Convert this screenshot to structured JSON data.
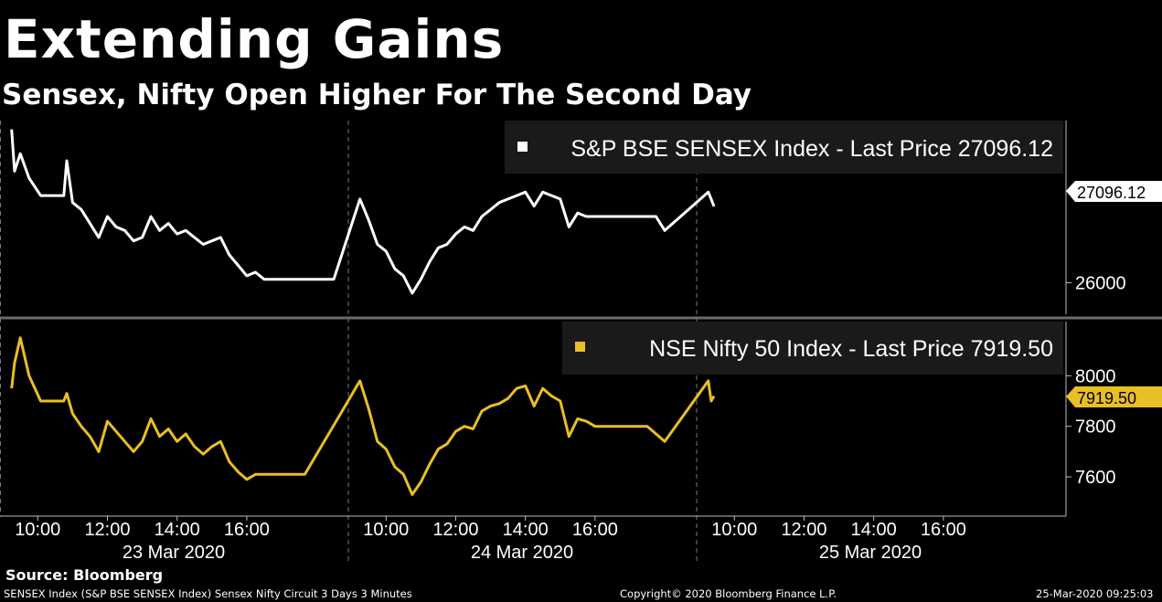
{
  "header": {
    "title": "Extending Gains",
    "subtitle": "Sensex, Nifty Open Higher For The Second Day"
  },
  "footer": {
    "source": "Source: Bloomberg",
    "description": "SENSEX Index (S&P BSE SENSEX Index) Sensex Nifty Circuit 3 Days 3 Minutes",
    "copyright": "Copyright© 2020 Bloomberg Finance L.P.",
    "timestamp": "25-Mar-2020 09:25:03"
  },
  "colors": {
    "background": "#000000",
    "sensex": "#ffffff",
    "nifty": "#e8bf24",
    "legend_bg": "#1a1a1a"
  },
  "chart_data": [
    {
      "type": "line",
      "panel": "top",
      "legend": "S&P BSE SENSEX Index - Last Price 27096.12",
      "last_price_label": "27096.12",
      "y_ticks": [
        "26000"
      ],
      "ylim": [
        25600,
        28300
      ],
      "grid": false,
      "legend_position": "top-right",
      "series": [
        {
          "name": "S&P BSE SENSEX Index",
          "color": "#ffffff",
          "points": [
            [
              "23 Mar 09:15",
              28200
            ],
            [
              "23 Mar 09:20",
              27600
            ],
            [
              "23 Mar 09:30",
              27850
            ],
            [
              "23 Mar 09:45",
              27500
            ],
            [
              "23 Mar 10:05",
              27250
            ],
            [
              "23 Mar 10:30",
              27250
            ],
            [
              "23 Mar 10:45",
              27250
            ],
            [
              "23 Mar 10:50",
              27750
            ],
            [
              "23 Mar 11:00",
              27150
            ],
            [
              "23 Mar 11:15",
              27050
            ],
            [
              "23 Mar 11:30",
              26850
            ],
            [
              "23 Mar 11:45",
              26650
            ],
            [
              "23 Mar 12:00",
              26950
            ],
            [
              "23 Mar 12:15",
              26800
            ],
            [
              "23 Mar 12:30",
              26750
            ],
            [
              "23 Mar 12:45",
              26600
            ],
            [
              "23 Mar 13:00",
              26650
            ],
            [
              "23 Mar 13:15",
              26950
            ],
            [
              "23 Mar 13:30",
              26750
            ],
            [
              "23 Mar 13:45",
              26850
            ],
            [
              "23 Mar 14:00",
              26700
            ],
            [
              "23 Mar 14:15",
              26750
            ],
            [
              "23 Mar 14:30",
              26650
            ],
            [
              "23 Mar 14:45",
              26550
            ],
            [
              "23 Mar 15:00",
              26600
            ],
            [
              "23 Mar 15:15",
              26650
            ],
            [
              "23 Mar 15:30",
              26400
            ],
            [
              "23 Mar 15:45",
              26250
            ],
            [
              "23 Mar 16:00",
              26100
            ],
            [
              "23 Mar 16:15",
              26150
            ],
            [
              "23 Mar 16:30",
              26050
            ],
            [
              "23 Mar 18:30",
              26050
            ],
            [
              "24 Mar 09:15",
              27200
            ],
            [
              "24 Mar 09:30",
              26900
            ],
            [
              "24 Mar 09:45",
              26550
            ],
            [
              "24 Mar 10:00",
              26450
            ],
            [
              "24 Mar 10:15",
              26200
            ],
            [
              "24 Mar 10:30",
              26100
            ],
            [
              "24 Mar 10:45",
              25850
            ],
            [
              "24 Mar 11:00",
              26050
            ],
            [
              "24 Mar 11:15",
              26300
            ],
            [
              "24 Mar 11:30",
              26500
            ],
            [
              "24 Mar 11:45",
              26550
            ],
            [
              "24 Mar 12:00",
              26700
            ],
            [
              "24 Mar 12:15",
              26800
            ],
            [
              "24 Mar 12:30",
              26750
            ],
            [
              "24 Mar 12:45",
              26950
            ],
            [
              "24 Mar 13:00",
              27050
            ],
            [
              "24 Mar 13:15",
              27150
            ],
            [
              "24 Mar 13:30",
              27200
            ],
            [
              "24 Mar 13:45",
              27250
            ],
            [
              "24 Mar 14:00",
              27300
            ],
            [
              "24 Mar 14:15",
              27100
            ],
            [
              "24 Mar 14:30",
              27300
            ],
            [
              "24 Mar 14:45",
              27250
            ],
            [
              "24 Mar 15:00",
              27200
            ],
            [
              "24 Mar 15:15",
              26800
            ],
            [
              "24 Mar 15:30",
              27000
            ],
            [
              "24 Mar 15:45",
              26950
            ],
            [
              "24 Mar 16:00",
              26950
            ],
            [
              "24 Mar 17:45",
              26950
            ],
            [
              "24 Mar 18:00",
              26750
            ],
            [
              "25 Mar 09:15",
              27300
            ],
            [
              "25 Mar 09:20",
              27200
            ],
            [
              "25 Mar 09:25",
              27096.12
            ]
          ]
        }
      ]
    },
    {
      "type": "line",
      "panel": "bottom",
      "legend": "NSE Nifty 50 Index - Last Price 7919.50",
      "last_price_label": "7919.50",
      "y_ticks": [
        "8000",
        "7800",
        "7600"
      ],
      "ylim": [
        7470,
        8200
      ],
      "grid": false,
      "legend_position": "top-right",
      "series": [
        {
          "name": "NSE Nifty 50 Index",
          "color": "#e8bf24",
          "points": [
            [
              "23 Mar 09:15",
              7950
            ],
            [
              "23 Mar 09:20",
              8050
            ],
            [
              "23 Mar 09:30",
              8150
            ],
            [
              "23 Mar 09:45",
              8000
            ],
            [
              "23 Mar 10:05",
              7900
            ],
            [
              "23 Mar 10:30",
              7900
            ],
            [
              "23 Mar 10:45",
              7900
            ],
            [
              "23 Mar 10:50",
              7930
            ],
            [
              "23 Mar 11:00",
              7850
            ],
            [
              "23 Mar 11:15",
              7800
            ],
            [
              "23 Mar 11:30",
              7760
            ],
            [
              "23 Mar 11:45",
              7700
            ],
            [
              "23 Mar 12:00",
              7820
            ],
            [
              "23 Mar 12:15",
              7780
            ],
            [
              "23 Mar 12:30",
              7740
            ],
            [
              "23 Mar 12:45",
              7700
            ],
            [
              "23 Mar 13:00",
              7740
            ],
            [
              "23 Mar 13:15",
              7830
            ],
            [
              "23 Mar 13:30",
              7760
            ],
            [
              "23 Mar 13:45",
              7790
            ],
            [
              "23 Mar 14:00",
              7740
            ],
            [
              "23 Mar 14:15",
              7770
            ],
            [
              "23 Mar 14:30",
              7720
            ],
            [
              "23 Mar 14:45",
              7690
            ],
            [
              "23 Mar 15:00",
              7720
            ],
            [
              "23 Mar 15:15",
              7740
            ],
            [
              "23 Mar 15:30",
              7660
            ],
            [
              "23 Mar 15:45",
              7620
            ],
            [
              "23 Mar 16:00",
              7590
            ],
            [
              "23 Mar 16:15",
              7610
            ],
            [
              "23 Mar 16:30",
              7610
            ],
            [
              "23 Mar 17:40",
              7610
            ],
            [
              "24 Mar 09:15",
              7980
            ],
            [
              "24 Mar 09:30",
              7870
            ],
            [
              "24 Mar 09:45",
              7740
            ],
            [
              "24 Mar 10:00",
              7710
            ],
            [
              "24 Mar 10:15",
              7640
            ],
            [
              "24 Mar 10:30",
              7610
            ],
            [
              "24 Mar 10:45",
              7530
            ],
            [
              "24 Mar 11:00",
              7580
            ],
            [
              "24 Mar 11:15",
              7650
            ],
            [
              "24 Mar 11:30",
              7710
            ],
            [
              "24 Mar 11:45",
              7730
            ],
            [
              "24 Mar 12:00",
              7780
            ],
            [
              "24 Mar 12:15",
              7800
            ],
            [
              "24 Mar 12:30",
              7790
            ],
            [
              "24 Mar 12:45",
              7860
            ],
            [
              "24 Mar 13:00",
              7880
            ],
            [
              "24 Mar 13:15",
              7890
            ],
            [
              "24 Mar 13:30",
              7910
            ],
            [
              "24 Mar 13:45",
              7950
            ],
            [
              "24 Mar 14:00",
              7960
            ],
            [
              "24 Mar 14:15",
              7880
            ],
            [
              "24 Mar 14:30",
              7950
            ],
            [
              "24 Mar 14:45",
              7920
            ],
            [
              "24 Mar 15:00",
              7900
            ],
            [
              "24 Mar 15:15",
              7760
            ],
            [
              "24 Mar 15:30",
              7830
            ],
            [
              "24 Mar 15:45",
              7820
            ],
            [
              "24 Mar 16:00",
              7800
            ],
            [
              "24 Mar 17:30",
              7800
            ],
            [
              "24 Mar 18:00",
              7740
            ],
            [
              "25 Mar 09:15",
              7980
            ],
            [
              "25 Mar 09:20",
              7900
            ],
            [
              "25 Mar 09:25",
              7919.5
            ]
          ]
        }
      ]
    }
  ],
  "x_axis": {
    "time_labels": [
      "10:00",
      "12:00",
      "14:00",
      "16:00",
      "10:00",
      "12:00",
      "14:00",
      "16:00",
      "10:00",
      "12:00",
      "14:00",
      "16:00"
    ],
    "day_labels": [
      "23 Mar 2020",
      "24 Mar 2020",
      "25 Mar 2020"
    ]
  }
}
